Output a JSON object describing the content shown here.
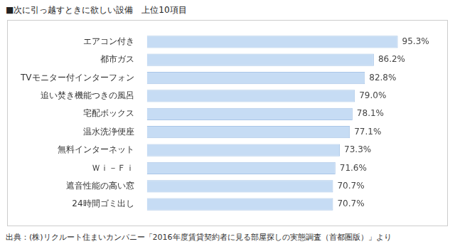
{
  "chart_data": {
    "type": "bar",
    "orientation": "horizontal",
    "title": "■次に引っ越すときに欲しい設備　上位10項目",
    "annotations": [
      "出典：(株)リクルート住まいカンパニー「2016年度賃貸契約者に見る部屋探しの実態調査（首都圏版）」より"
    ],
    "categories": [
      "エアコン付き",
      "都市ガス",
      "TVモニター付インターフォン",
      "追い焚き機能つきの風呂",
      "宅配ボックス",
      "温水洗浄便座",
      "無料インターネット",
      "Ｗｉ－Ｆｉ",
      "遮音性能の高い窓",
      "24時間ゴミ出し"
    ],
    "values": [
      95.3,
      86.2,
      82.8,
      79.0,
      78.1,
      77.1,
      73.3,
      71.6,
      70.7,
      70.7
    ],
    "value_labels": [
      "95.3%",
      "86.2%",
      "82.8%",
      "79.0%",
      "78.1%",
      "77.1%",
      "73.3%",
      "71.6%",
      "70.7%",
      "70.7%"
    ],
    "data_labels": true,
    "color": "#c6dcf4",
    "xlim": [
      0,
      100
    ],
    "grid": false,
    "tick_labels": "y"
  }
}
